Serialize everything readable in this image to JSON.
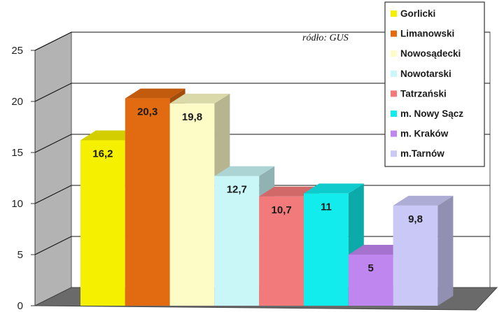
{
  "chart_data": {
    "type": "bar",
    "categories": [
      "Gorlicki",
      "Limanowski",
      "Nowosądecki",
      "Nowotarski",
      "Tatrzański",
      "m. Nowy Sącz",
      "m. Kraków",
      "m.Tarnów"
    ],
    "values": [
      16.2,
      20.3,
      19.8,
      12.7,
      10.7,
      11,
      5,
      9.8
    ],
    "value_labels": [
      "16,2",
      "20,3",
      "19,8",
      "12,7",
      "10,7",
      "11",
      "5",
      "9,8"
    ],
    "colors": [
      "#f5f000",
      "#e26a10",
      "#fdfcc6",
      "#c9f7f7",
      "#f37a7a",
      "#12ecec",
      "#c086f0",
      "#c9c8f7"
    ],
    "yticks": [
      0,
      5,
      10,
      15,
      20,
      25
    ],
    "ylim": [
      0,
      25
    ],
    "grid": true,
    "legend": "top-right",
    "source_note": "ródło: GUS"
  }
}
